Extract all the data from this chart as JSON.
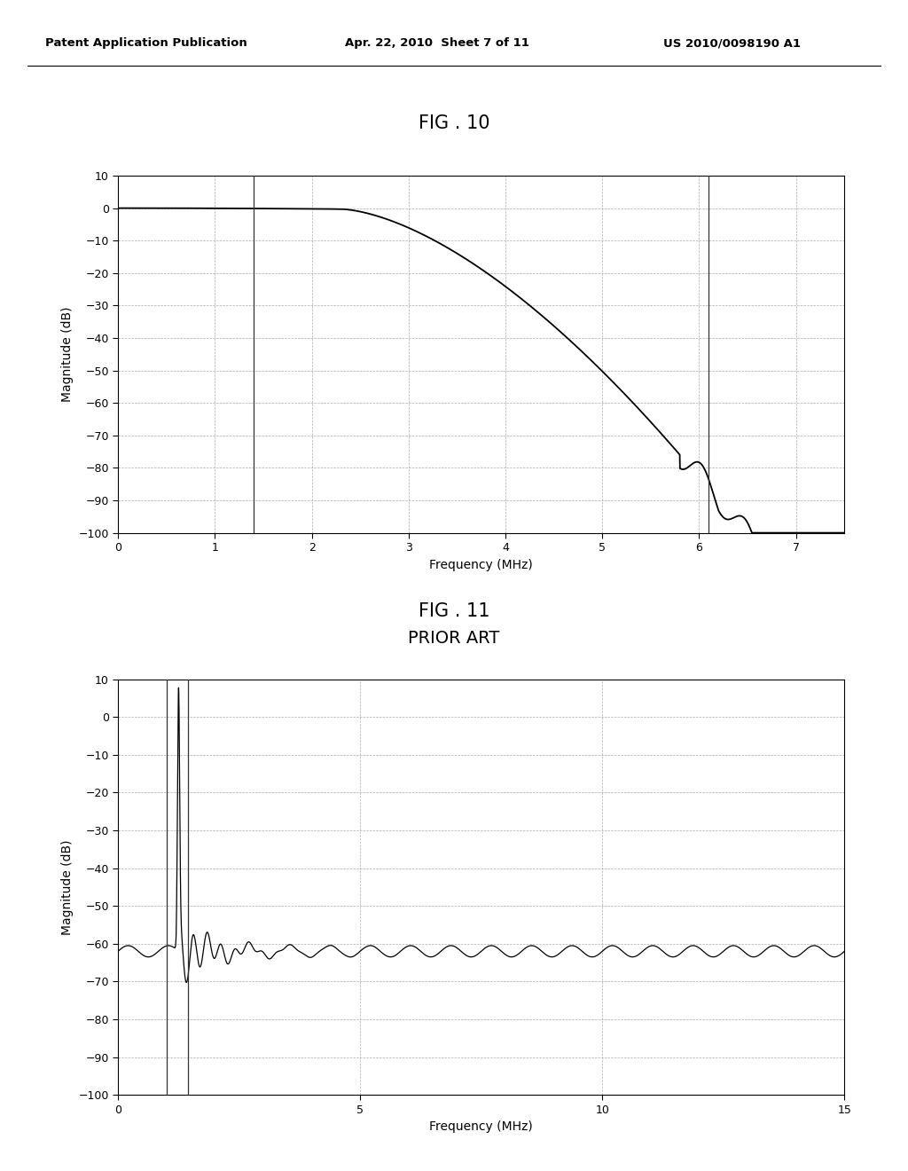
{
  "fig10_title": "FIG . 10",
  "fig11_title": "FIG . 11",
  "fig11_subtitle": "PRIOR ART",
  "header_left": "Patent Application Publication",
  "header_mid": "Apr. 22, 2010  Sheet 7 of 11",
  "header_right": "US 2010/0098190 A1",
  "fig10": {
    "xlabel": "Frequency (MHz)",
    "ylabel": "Magnitude (dB)",
    "xlim": [
      0,
      7.5
    ],
    "ylim": [
      -100,
      10
    ],
    "xticks": [
      0,
      1,
      2,
      3,
      4,
      5,
      6,
      7
    ],
    "yticks": [
      10,
      0,
      -10,
      -20,
      -30,
      -40,
      -50,
      -60,
      -70,
      -80,
      -90,
      -100
    ],
    "vlines": [
      1.4,
      6.1
    ],
    "bg_color": "#ffffff"
  },
  "fig11": {
    "xlabel": "Frequency (MHz)",
    "ylabel": "Magnitude (dB)",
    "xlim": [
      0,
      15
    ],
    "ylim": [
      -100,
      10
    ],
    "xticks": [
      0,
      5,
      10,
      15
    ],
    "yticks": [
      10,
      0,
      -10,
      -20,
      -30,
      -40,
      -50,
      -60,
      -70,
      -80,
      -90,
      -100
    ],
    "vlines": [
      1.0,
      1.45
    ],
    "bg_color": "#ffffff"
  },
  "line_color": "#000000",
  "vline_color": "#333333",
  "grid_color": "#999999",
  "text_color": "#000000",
  "background_color": "#ffffff"
}
